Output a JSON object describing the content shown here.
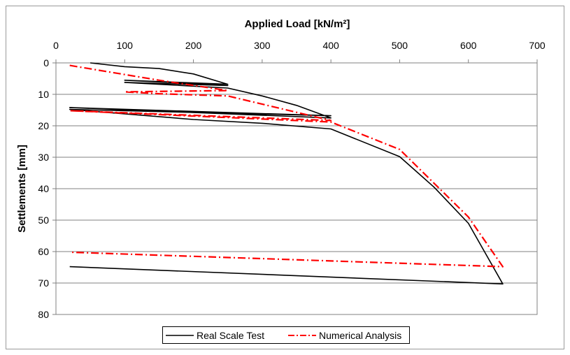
{
  "chart_data": {
    "type": "line",
    "title": "",
    "xlabel": "Applied Load [kN/m²]",
    "ylabel": "Settlements [mm]",
    "xlim": [
      0,
      700
    ],
    "ylim": [
      0,
      80
    ],
    "y_inverted": true,
    "x_axis_position": "top",
    "x_ticks": [
      "0",
      "100",
      "200",
      "300",
      "400",
      "500",
      "600",
      "700"
    ],
    "y_ticks": [
      "0",
      "10",
      "20",
      "30",
      "40",
      "50",
      "60",
      "70",
      "80"
    ],
    "grid": "horizontal",
    "legend_position": "bottom",
    "series": [
      {
        "name": "Real Scale Test",
        "color": "#000000",
        "style": "solid",
        "points": [
          [
            50,
            0
          ],
          [
            100,
            1.2
          ],
          [
            150,
            1.8
          ],
          [
            200,
            3.5
          ],
          [
            250,
            6.8
          ],
          [
            100,
            5.5
          ],
          [
            250,
            7.2
          ],
          [
            100,
            6.2
          ],
          [
            250,
            8.0
          ],
          [
            300,
            10.5
          ],
          [
            350,
            13.5
          ],
          [
            400,
            17.5
          ],
          [
            20,
            14.2
          ],
          [
            400,
            16.8
          ],
          [
            20,
            14.8
          ],
          [
            100,
            16.2
          ],
          [
            200,
            18.0
          ],
          [
            300,
            19.2
          ],
          [
            400,
            21.0
          ],
          [
            500,
            29.8
          ],
          [
            550,
            39.5
          ],
          [
            600,
            51.0
          ],
          [
            650,
            70.3
          ],
          [
            20,
            64.8
          ]
        ]
      },
      {
        "name": "Numerical Analysis",
        "color": "#ff0000",
        "style": "dash-dot",
        "points": [
          [
            20,
            0.8
          ],
          [
            150,
            5.5
          ],
          [
            250,
            8.8
          ],
          [
            100,
            9.2
          ],
          [
            150,
            9.8
          ],
          [
            250,
            10.5
          ],
          [
            400,
            18.3
          ],
          [
            20,
            15.2
          ],
          [
            400,
            18.8
          ],
          [
            500,
            27.5
          ],
          [
            600,
            49.0
          ],
          [
            650,
            64.8
          ],
          [
            20,
            60.2
          ]
        ]
      }
    ]
  }
}
